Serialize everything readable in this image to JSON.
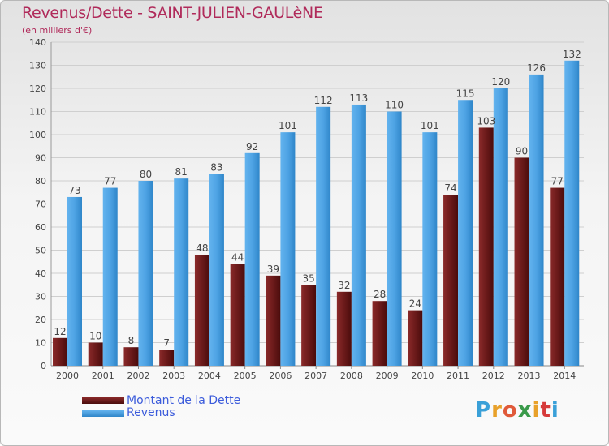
{
  "header": {
    "title": "Revenus/Dette - SAINT-JULIEN-GAULèNE",
    "subtitle": "(en milliers d'€)"
  },
  "legend": {
    "debt_label": "Montant de la Dette",
    "revenue_label": "Revenus"
  },
  "logo": {
    "text": "Proxiti"
  },
  "colors": {
    "debt": "#6b1a1a",
    "revenue": "#4ea3e4",
    "title": "#b02a5a",
    "legend_text": "#3b5bdb"
  },
  "chart_data": {
    "type": "bar",
    "categories": [
      "2000",
      "2001",
      "2002",
      "2003",
      "2004",
      "2005",
      "2006",
      "2007",
      "2008",
      "2009",
      "2010",
      "2011",
      "2012",
      "2013",
      "2014"
    ],
    "series": [
      {
        "name": "Montant de la Dette",
        "values": [
          12,
          10,
          8,
          7,
          48,
          44,
          39,
          35,
          32,
          28,
          24,
          74,
          103,
          90,
          77
        ]
      },
      {
        "name": "Revenus",
        "values": [
          73,
          77,
          80,
          81,
          83,
          92,
          101,
          112,
          113,
          110,
          101,
          115,
          120,
          126,
          132
        ]
      }
    ],
    "ylim": [
      0,
      140
    ],
    "yticks": [
      0,
      10,
      20,
      30,
      40,
      50,
      60,
      70,
      80,
      90,
      100,
      110,
      120,
      130,
      140
    ],
    "grid": true,
    "legend_position": "bottom-left"
  }
}
